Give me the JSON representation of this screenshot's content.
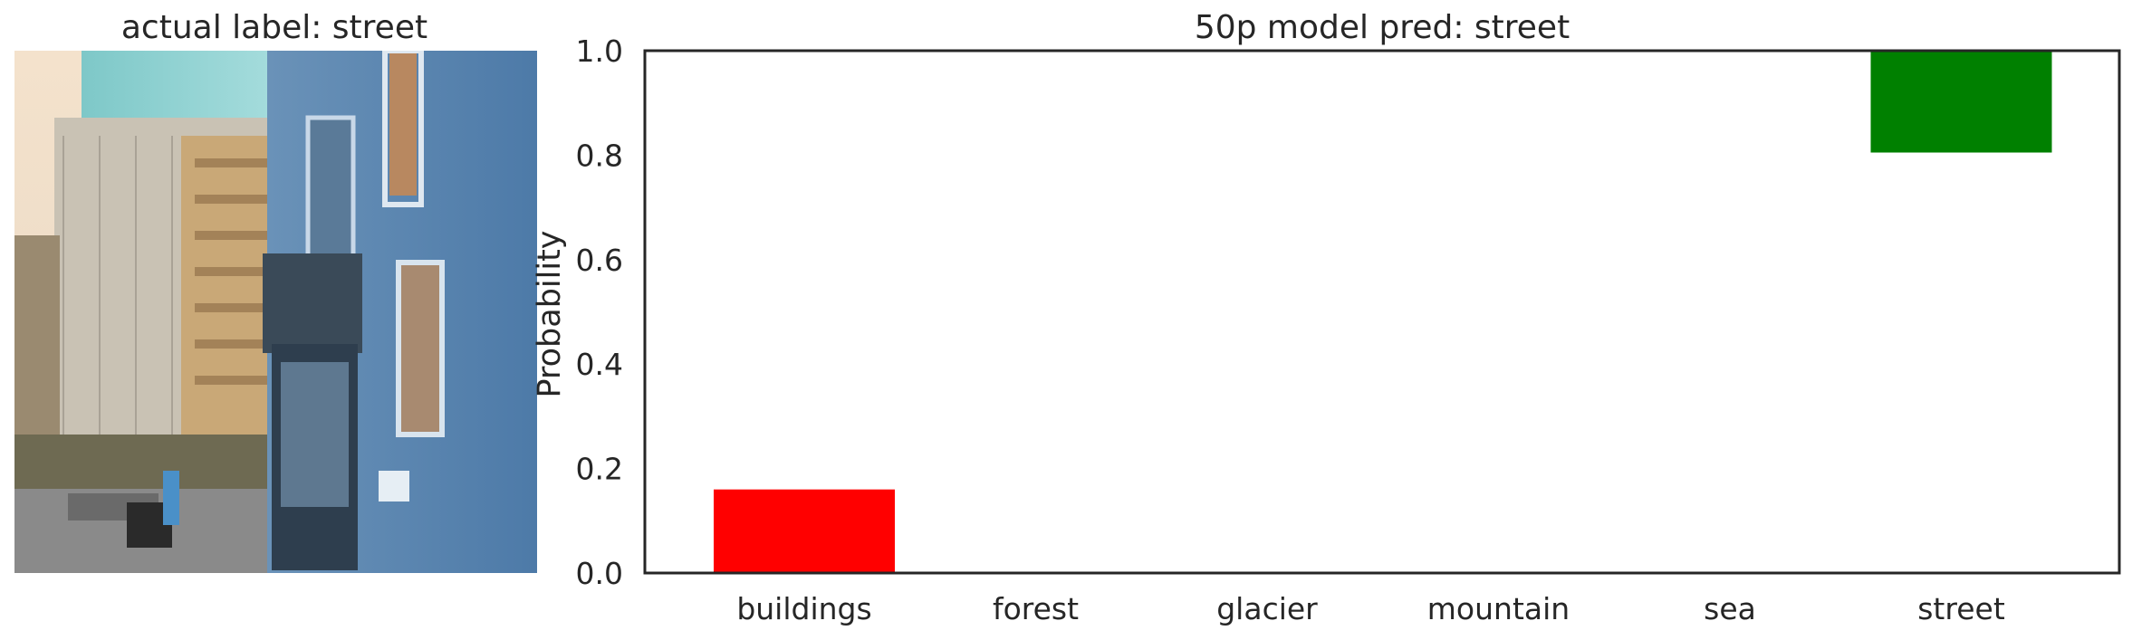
{
  "image_panel": {
    "title": "actual label: street",
    "subject": "street scene photo"
  },
  "chart_data": {
    "type": "bar",
    "title": "50p model pred: street",
    "xlabel": "",
    "ylabel": "Probability",
    "categories": [
      "buildings",
      "forest",
      "glacier",
      "mountain",
      "sea",
      "street"
    ],
    "series": [
      {
        "values": [
          0.16,
          0.0,
          0.0,
          0.0,
          0.0,
          1.0
        ],
        "bottom": [
          0.0,
          0.0,
          0.0,
          0.0,
          0.0,
          0.805
        ]
      }
    ],
    "colors": [
      "#ff0000",
      "#0000ff",
      "#0000ff",
      "#0000ff",
      "#0000ff",
      "#008000"
    ],
    "ylim": [
      0,
      1.0
    ],
    "yticks": [
      0.0,
      0.2,
      0.4,
      0.6,
      0.8,
      1.0
    ],
    "ytick_labels": [
      "0.0",
      "0.2",
      "0.4",
      "0.6",
      "0.8",
      "1.0"
    ],
    "grid": false,
    "legend": "none"
  }
}
